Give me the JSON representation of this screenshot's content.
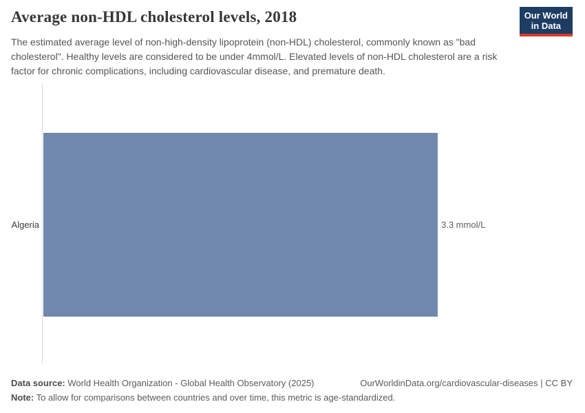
{
  "header": {
    "title": "Average non-HDL cholesterol levels, 2018",
    "subtitle": "The estimated average level of non-high-density lipoprotein (non-HDL) cholesterol, commonly known as \"bad cholesterol\". Healthy levels are considered to be under 4mmol/L. Elevated levels of non-HDL cholesterol are a risk factor for chronic complications, including cardiovascular disease, and premature death."
  },
  "logo": {
    "line1": "Our World",
    "line2": "in Data",
    "bg_color": "#1d3d63",
    "accent_color": "#d93a2b",
    "text_color": "#ffffff"
  },
  "chart_data": {
    "type": "bar",
    "orientation": "horizontal",
    "title": "Average non-HDL cholesterol levels, 2018",
    "categories": [
      "Algeria"
    ],
    "values": [
      3.3
    ],
    "value_labels": [
      "3.3 mmol/L"
    ],
    "unit": "mmol/L",
    "xlabel": "",
    "ylabel": "",
    "xlim": [
      0,
      3.3
    ],
    "grid": false,
    "legend": false,
    "bar_color": "#7088ad",
    "axis_line_color": "#dadada"
  },
  "footer": {
    "data_source_label": "Data source:",
    "data_source_text": " World Health Organization - Global Health Observatory (2025)",
    "link_text": "OurWorldinData.org/cardiovascular-diseases | CC BY",
    "note_label": "Note:",
    "note_text": " To allow for comparisons between countries and over time, this metric is age-standardized."
  }
}
